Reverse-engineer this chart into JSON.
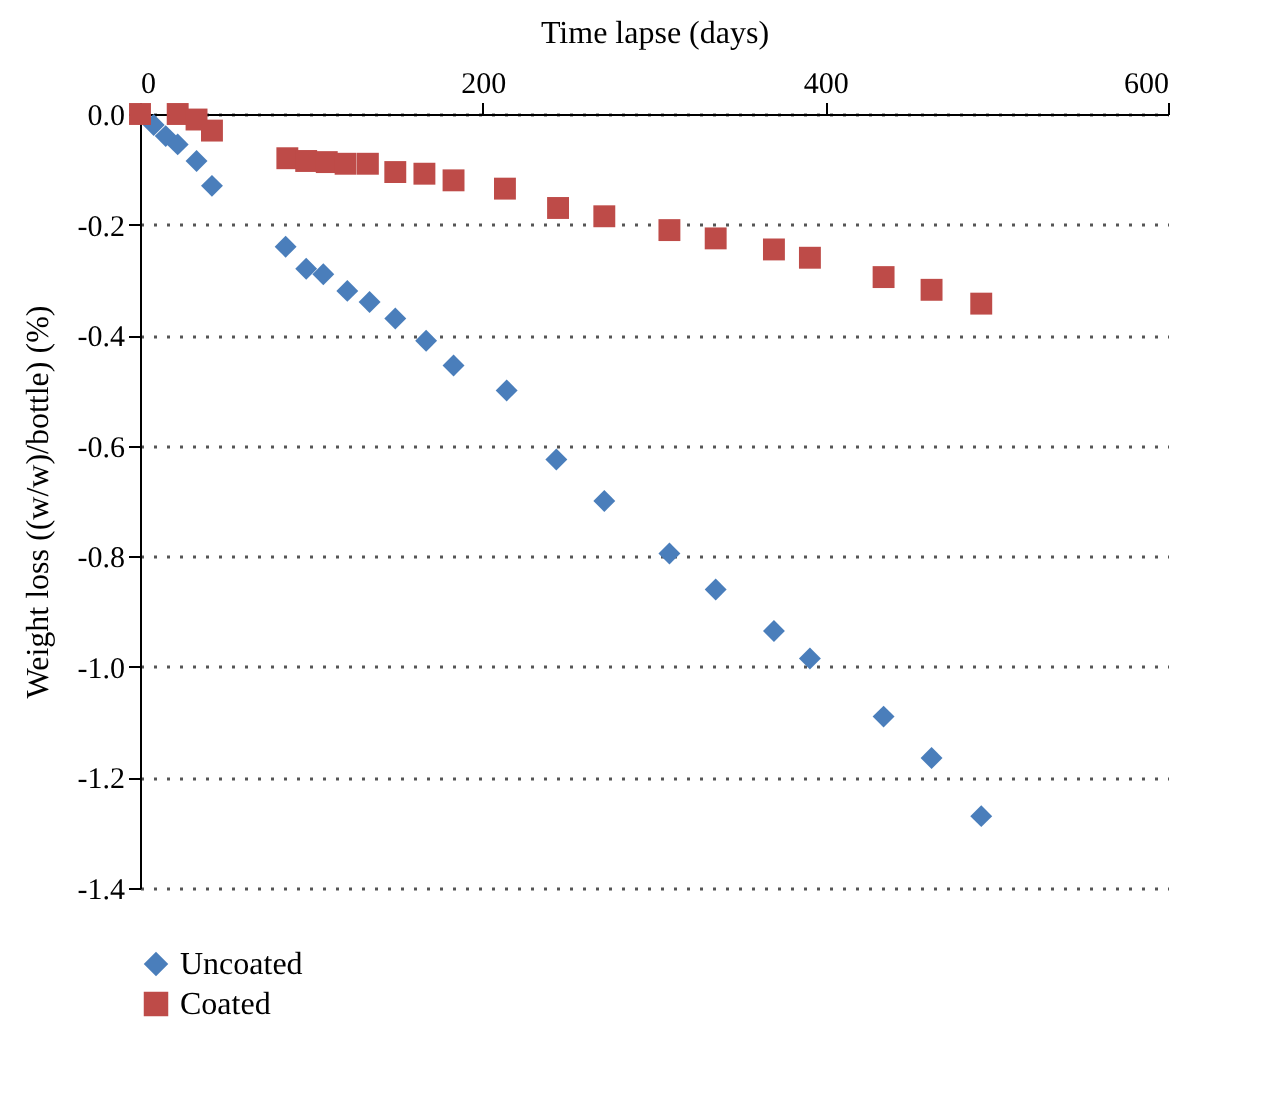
{
  "chart_data": {
    "type": "scatter",
    "xlabel": "Time lapse (days)",
    "ylabel": "Weight loss ((w/w)/bottle) (%)",
    "xlim": [
      0,
      600
    ],
    "xticks": [
      0,
      200,
      400,
      600
    ],
    "ylim": [
      -1.4,
      0.0
    ],
    "yticks": [
      -1.4,
      -1.2,
      {
        "value": -1,
        "label": "-1.0"
      },
      -0.8,
      -0.6,
      -0.4,
      -0.2,
      {
        "value": 0,
        "label": "0.0"
      }
    ],
    "grid": "y",
    "legend": "bottom",
    "series": [
      {
        "name": "Uncoated",
        "color": "#4a7ebb",
        "marker": "diamond",
        "x": [
          8,
          15,
          22,
          33,
          42,
          85,
          97,
          107,
          121,
          134,
          149,
          167,
          183,
          214,
          243,
          271,
          309,
          336,
          370,
          391,
          434,
          462,
          491
        ],
        "values": [
          -0.02,
          -0.04,
          -0.055,
          -0.085,
          -0.13,
          -0.24,
          -0.28,
          -0.29,
          -0.32,
          -0.34,
          -0.37,
          -0.41,
          -0.455,
          -0.5,
          -0.625,
          -0.7,
          -0.795,
          -0.86,
          -0.935,
          -0.985,
          -1.09,
          -1.165,
          -1.27
        ]
      },
      {
        "name": "Coated",
        "color": "#be4b48",
        "marker": "square",
        "x": [
          0,
          22,
          33,
          42,
          86,
          97,
          109,
          120,
          133,
          149,
          166,
          183,
          213,
          244,
          271,
          309,
          336,
          370,
          391,
          434,
          462,
          491
        ],
        "values": [
          0,
          0,
          -0.01,
          -0.03,
          -0.08,
          -0.085,
          -0.087,
          -0.09,
          -0.09,
          -0.105,
          -0.108,
          -0.12,
          -0.135,
          -0.17,
          -0.185,
          -0.21,
          -0.225,
          -0.245,
          -0.26,
          -0.295,
          -0.318,
          -0.343
        ]
      }
    ]
  }
}
